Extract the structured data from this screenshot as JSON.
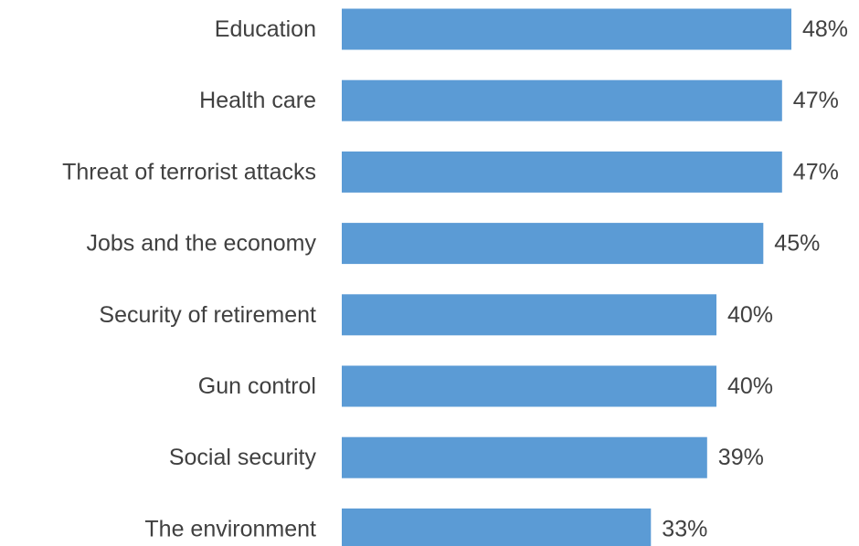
{
  "chart_data": {
    "type": "bar",
    "orientation": "horizontal",
    "categories": [
      "Education",
      "Health care",
      "Threat of terrorist attacks",
      "Jobs and the economy",
      "Security of retirement",
      "Gun control",
      "Social security",
      "The environment"
    ],
    "values": [
      48,
      47,
      47,
      45,
      40,
      40,
      39,
      33
    ],
    "value_labels": [
      "48%",
      "47%",
      "47%",
      "45%",
      "40%",
      "40%",
      "39%",
      "33%"
    ],
    "title": "",
    "xlabel": "",
    "ylabel": "",
    "xlim": [
      0,
      50
    ],
    "grid": false,
    "bar_color": "#5b9bd5",
    "text_color": "#404040"
  }
}
